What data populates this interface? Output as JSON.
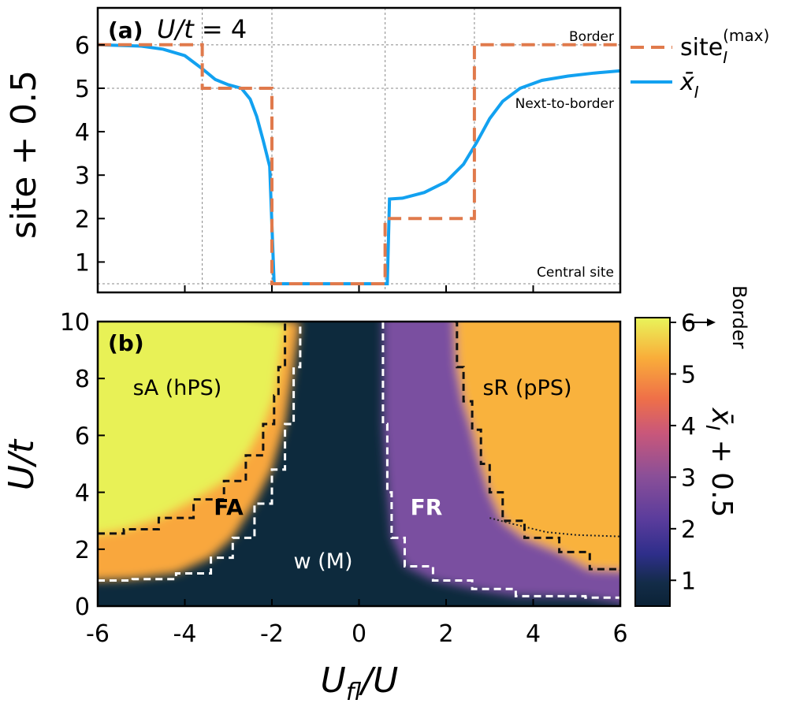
{
  "panel_a": {
    "label": "(a)",
    "title_main": "U/t",
    "title_eq": " = 4",
    "annotations": {
      "top": "Border",
      "middle": "Next-to-border",
      "bottom": "Central site"
    },
    "ylabel": "site + 0.5",
    "legend": {
      "series1": "site",
      "series1_sub": "I",
      "series1_sup": "(max)",
      "series2": "x̄",
      "series2_sub": "I"
    },
    "yticks": [
      "1",
      "2",
      "3",
      "4",
      "5",
      "6"
    ]
  },
  "panel_b": {
    "label": "(b)",
    "ylabel_main": "U/t",
    "xlabel_main": "U",
    "xlabel_sub": "fl",
    "xlabel_tail": "/U",
    "xticks": [
      "-6",
      "-4",
      "-2",
      "0",
      "2",
      "4",
      "6"
    ],
    "yticks": [
      "0",
      "2",
      "4",
      "6",
      "8",
      "10"
    ],
    "regions": {
      "sA": "sA (hPS)",
      "sR": "sR (pPS)",
      "FA": "FA",
      "FR": "FR",
      "w": "w (M)"
    },
    "colorbar": {
      "ticks": [
        "1",
        "2",
        "3",
        "4",
        "5",
        "6"
      ],
      "label_main": "x̄",
      "label_sub": "I",
      "label_tail": " + 0.5",
      "arrow_label": "Border"
    }
  },
  "colors": {
    "orange": "#e07a4c",
    "blue": "#12a1f0",
    "background_map": "#0d2a3d"
  },
  "chart_data": [
    {
      "type": "line",
      "title": "(a) U/t = 4",
      "xlabel": "",
      "ylabel": "site + 0.5",
      "xlim": [
        -6,
        6
      ],
      "ylim": [
        0.3,
        6.85
      ],
      "grid": "x: -3.6, -2.0, 0.6, 2.65; y: 0.5, 5, 6",
      "legend_position": "right, outside plot",
      "series": [
        {
          "name": "site_I^(max)",
          "style": "dashed",
          "color": "#e07a4c",
          "points": [
            [
              -6,
              6.0
            ],
            [
              -3.6,
              6.0
            ],
            [
              -3.6,
              5.0
            ],
            [
              -2.0,
              5.0
            ],
            [
              -2.0,
              0.5
            ],
            [
              0.6,
              0.5
            ],
            [
              0.6,
              2.0
            ],
            [
              2.65,
              2.0
            ],
            [
              2.65,
              6.0
            ],
            [
              6,
              6.0
            ]
          ]
        },
        {
          "name": "x̄_I",
          "style": "solid",
          "color": "#12a1f0",
          "points": [
            [
              -6,
              6.0
            ],
            [
              -5,
              5.97
            ],
            [
              -4.5,
              5.9
            ],
            [
              -4.0,
              5.75
            ],
            [
              -3.6,
              5.45
            ],
            [
              -3.3,
              5.2
            ],
            [
              -3.0,
              5.08
            ],
            [
              -2.7,
              5.0
            ],
            [
              -2.5,
              4.75
            ],
            [
              -2.35,
              4.35
            ],
            [
              -2.2,
              3.8
            ],
            [
              -2.05,
              3.2
            ],
            [
              -1.95,
              0.5
            ],
            [
              0.65,
              0.5
            ],
            [
              0.7,
              2.45
            ],
            [
              1.0,
              2.47
            ],
            [
              1.5,
              2.6
            ],
            [
              2.0,
              2.85
            ],
            [
              2.4,
              3.25
            ],
            [
              2.7,
              3.75
            ],
            [
              3.0,
              4.3
            ],
            [
              3.3,
              4.7
            ],
            [
              3.7,
              5.0
            ],
            [
              4.2,
              5.18
            ],
            [
              4.8,
              5.28
            ],
            [
              5.4,
              5.35
            ],
            [
              6.0,
              5.4
            ]
          ]
        }
      ]
    },
    {
      "type": "heatmap",
      "title": "(b)",
      "xlabel": "U_fl/U",
      "ylabel": "U/t",
      "xlim": [
        -6,
        6
      ],
      "ylim": [
        0,
        10
      ],
      "colorbar": {
        "label": "x̄_I + 0.5",
        "range": [
          0.5,
          6.0
        ],
        "ticks": [
          1,
          2,
          3,
          4,
          5,
          6
        ],
        "colormap": "plasma-like (dark navy → purple → orange → yellow)"
      },
      "regions": [
        {
          "name": "sA (hPS)",
          "approx_center": [
            -5,
            8
          ],
          "value": 6.0
        },
        {
          "name": "FA",
          "approx_center": [
            -3,
            3.5
          ],
          "value": 5.0
        },
        {
          "name": "w (M)",
          "approx_center": [
            -0.8,
            1.6
          ],
          "value": 0.5
        },
        {
          "name": "FR",
          "approx_center": [
            1.6,
            3.5
          ],
          "value": 2.0
        },
        {
          "name": "sR (pPS)",
          "approx_center": [
            4.3,
            8
          ],
          "value": 5.5
        }
      ],
      "boundaries": [
        {
          "name": "white dashed (left)",
          "points": [
            [
              -6,
              0.9
            ],
            [
              -5.2,
              0.95
            ],
            [
              -4.2,
              1.15
            ],
            [
              -3.4,
              1.7
            ],
            [
              -2.9,
              2.4
            ],
            [
              -2.4,
              3.6
            ],
            [
              -2.0,
              4.8
            ],
            [
              -1.7,
              6.4
            ],
            [
              -1.5,
              8.4
            ],
            [
              -1.35,
              10
            ]
          ]
        },
        {
          "name": "white dashed (right)",
          "points": [
            [
              0.55,
              10
            ],
            [
              0.55,
              6.4
            ],
            [
              0.65,
              4.0
            ],
            [
              0.75,
              2.4
            ],
            [
              1.05,
              1.4
            ],
            [
              1.7,
              0.9
            ],
            [
              2.6,
              0.6
            ],
            [
              3.6,
              0.35
            ],
            [
              5.2,
              0.3
            ],
            [
              6,
              0.1
            ]
          ]
        },
        {
          "name": "black dashed (left)",
          "points": [
            [
              -6,
              2.55
            ],
            [
              -5.4,
              2.7
            ],
            [
              -4.6,
              3.1
            ],
            [
              -3.8,
              3.75
            ],
            [
              -3.1,
              4.4
            ],
            [
              -2.6,
              5.3
            ],
            [
              -2.2,
              6.4
            ],
            [
              -1.95,
              7.4
            ],
            [
              -1.85,
              8.4
            ],
            [
              -1.7,
              10
            ]
          ]
        },
        {
          "name": "black dashed (right)",
          "points": [
            [
              2.2,
              10
            ],
            [
              2.25,
              8.4
            ],
            [
              2.4,
              7.2
            ],
            [
              2.6,
              6.2
            ],
            [
              2.8,
              5.0
            ],
            [
              3.0,
              4.0
            ],
            [
              3.3,
              3.0
            ],
            [
              3.8,
              2.4
            ],
            [
              4.6,
              1.9
            ],
            [
              5.3,
              1.3
            ],
            [
              6,
              1.25
            ]
          ]
        },
        {
          "name": "black dotted",
          "points": [
            [
              3.0,
              3.1
            ],
            [
              3.5,
              2.9
            ],
            [
              4.3,
              2.6
            ],
            [
              5.0,
              2.5
            ],
            [
              6,
              2.45
            ]
          ]
        }
      ]
    }
  ]
}
